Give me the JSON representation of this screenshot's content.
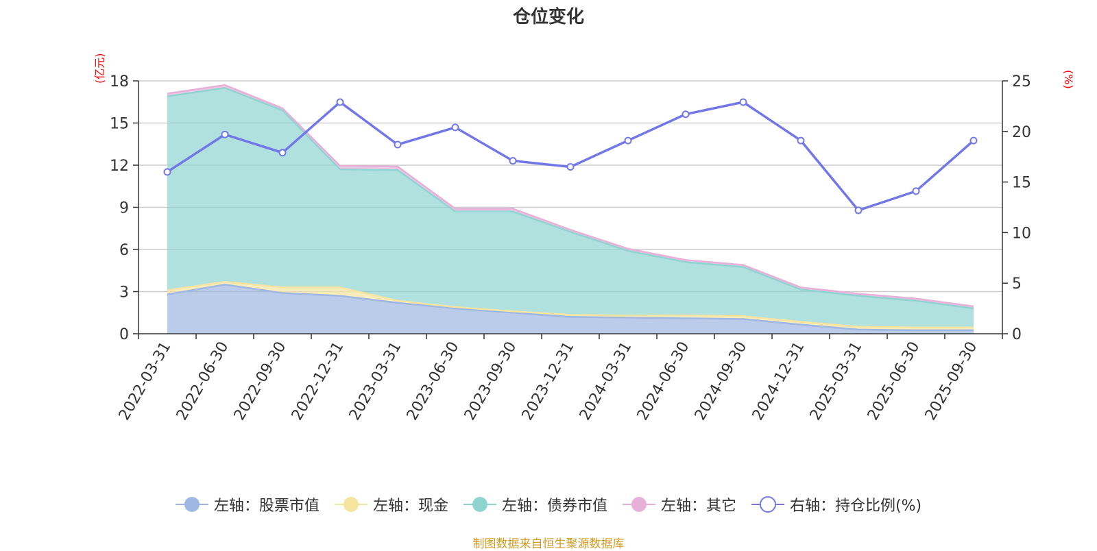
{
  "chart_data": {
    "type": "area",
    "title": "仓位变化",
    "left_axis_unit": "(亿元)",
    "right_axis_unit": "(%)",
    "categories": [
      "2022-03-31",
      "2022-06-30",
      "2022-09-30",
      "2022-12-31",
      "2023-03-31",
      "2023-06-30",
      "2023-09-30",
      "2023-12-31",
      "2024-03-31",
      "2024-06-30",
      "2024-09-30",
      "2024-12-31",
      "2025-03-31",
      "2025-06-30",
      "2025-09-30"
    ],
    "ylim_left": [
      0,
      18
    ],
    "yticks_left": [
      "0",
      "3",
      "6",
      "9",
      "12",
      "15",
      "18"
    ],
    "ylim_right": [
      0,
      25
    ],
    "yticks_right": [
      "0",
      "5",
      "10",
      "15",
      "20",
      "25"
    ],
    "stacked": true,
    "series": [
      {
        "name": "左轴：股票市值",
        "axis": "left",
        "color": "#9eb6e2",
        "values": [
          2.8,
          3.5,
          2.9,
          2.7,
          2.2,
          1.8,
          1.5,
          1.2,
          1.15,
          1.1,
          1.05,
          0.65,
          0.3,
          0.25,
          0.25
        ]
      },
      {
        "name": "左轴：现金",
        "axis": "left",
        "color": "#f7e4a0",
        "values": [
          0.3,
          0.2,
          0.4,
          0.6,
          0.15,
          0.1,
          0.1,
          0.15,
          0.15,
          0.2,
          0.2,
          0.2,
          0.2,
          0.2,
          0.2
        ]
      },
      {
        "name": "左轴：债券市值",
        "axis": "left",
        "color": "#8fd4d1",
        "values": [
          13.8,
          13.8,
          12.6,
          8.4,
          9.3,
          6.8,
          7.1,
          5.9,
          4.6,
          3.8,
          3.5,
          2.3,
          2.2,
          1.9,
          1.35
        ]
      },
      {
        "name": "左轴：其它",
        "axis": "left",
        "color": "#e6b0d8",
        "values": [
          0.2,
          0.2,
          0.15,
          0.25,
          0.25,
          0.2,
          0.2,
          0.15,
          0.15,
          0.15,
          0.15,
          0.15,
          0.15,
          0.15,
          0.15
        ]
      },
      {
        "name": "右轴：持仓比例(%)",
        "axis": "right",
        "type": "line",
        "color": "#7277e8",
        "values": [
          16.0,
          19.7,
          17.9,
          22.9,
          18.7,
          20.4,
          17.1,
          16.5,
          19.1,
          21.7,
          22.9,
          19.1,
          12.2,
          14.1,
          19.1
        ]
      }
    ],
    "source_note": "制图数据来自恒生聚源数据库"
  }
}
